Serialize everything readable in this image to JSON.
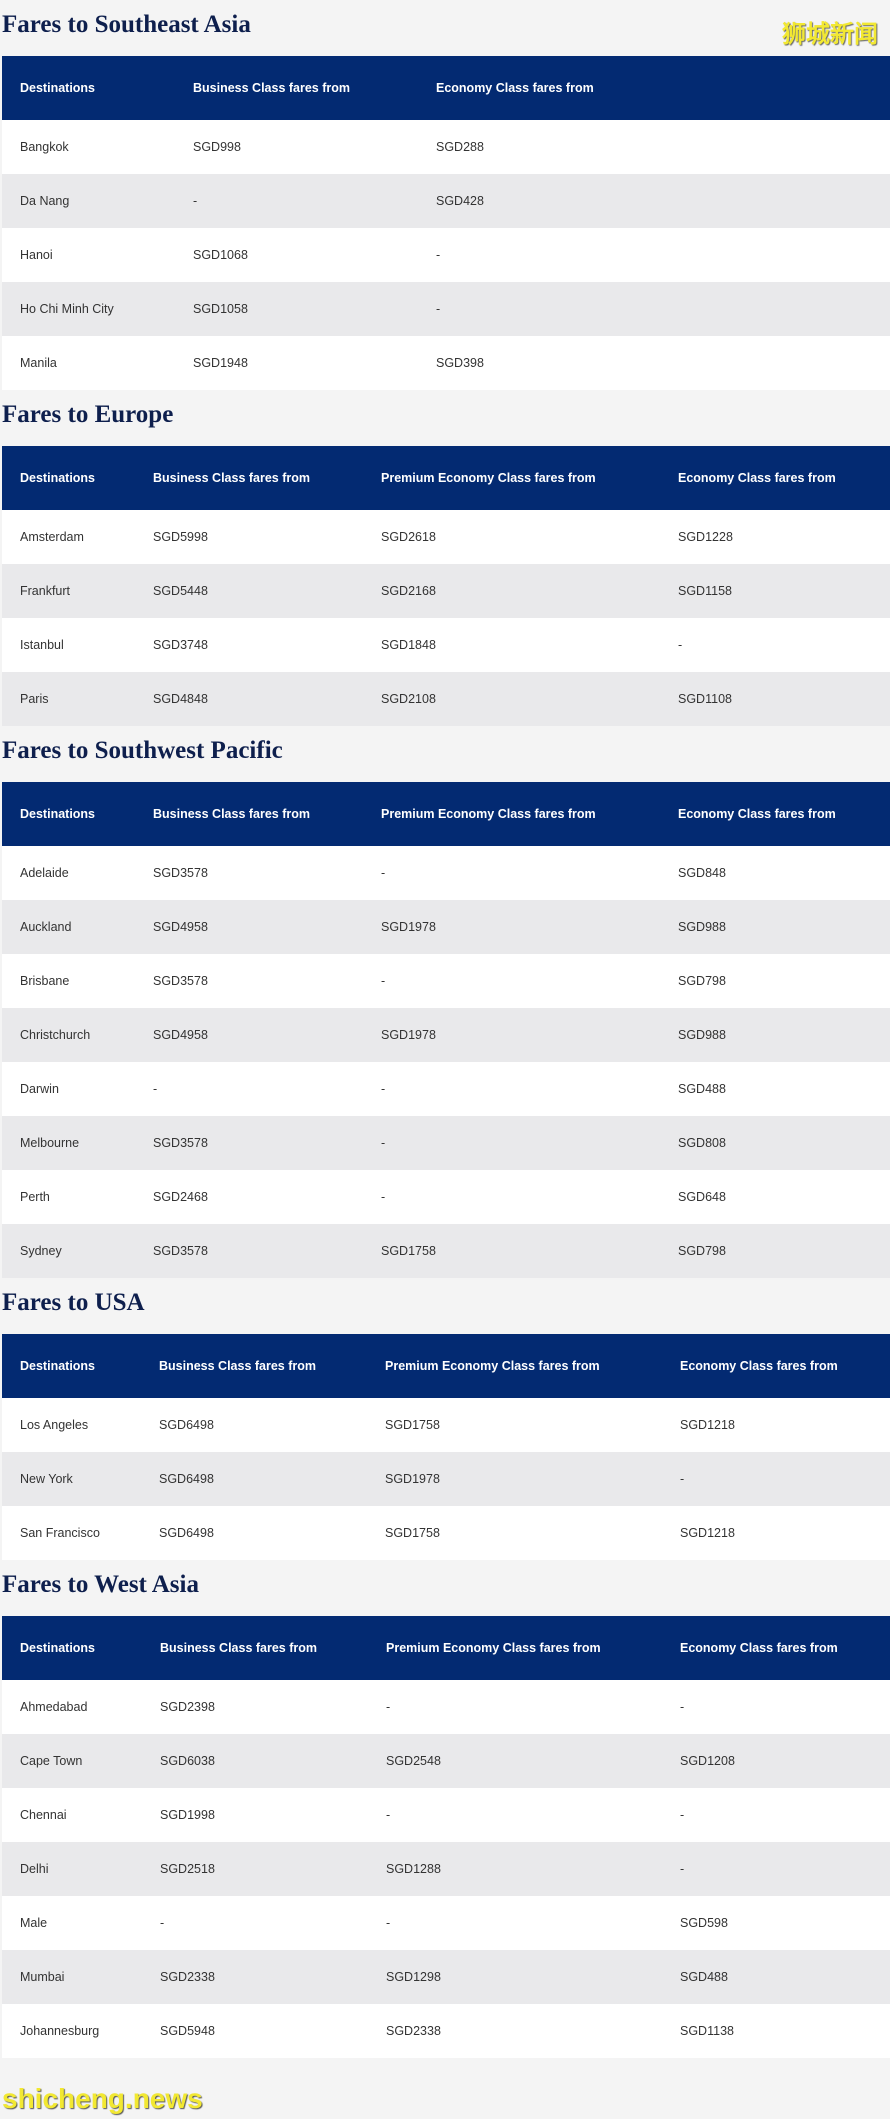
{
  "watermark_top": "狮城新闻",
  "watermark_bottom": "shicheng.news",
  "sections": [
    {
      "title": "Fares to Southeast Asia",
      "headers": [
        "Destinations",
        "Business Class fares from",
        "Economy Class fares from"
      ],
      "rows": [
        [
          "Bangkok",
          "SGD998",
          "SGD288"
        ],
        [
          "Da Nang",
          "-",
          "SGD428"
        ],
        [
          "Hanoi",
          "SGD1068",
          "-"
        ],
        [
          "Ho Chi Minh City",
          "SGD1058",
          "-"
        ],
        [
          "Manila",
          "SGD1948",
          "SGD398"
        ]
      ]
    },
    {
      "title": "Fares to Europe",
      "headers": [
        "Destinations",
        "Business Class fares from",
        "Premium Economy Class fares from",
        "Economy Class fares from"
      ],
      "rows": [
        [
          "Amsterdam",
          "SGD5998",
          "SGD2618",
          "SGD1228"
        ],
        [
          "Frankfurt",
          "SGD5448",
          "SGD2168",
          "SGD1158"
        ],
        [
          "Istanbul",
          "SGD3748",
          "SGD1848",
          "-"
        ],
        [
          "Paris",
          "SGD4848",
          "SGD2108",
          "SGD1108"
        ]
      ]
    },
    {
      "title": "Fares to Southwest Pacific",
      "headers": [
        "Destinations",
        "Business Class fares from",
        "Premium Economy Class fares from",
        "Economy Class fares from"
      ],
      "rows": [
        [
          "Adelaide",
          "SGD3578",
          "-",
          "SGD848"
        ],
        [
          "Auckland",
          "SGD4958",
          "SGD1978",
          "SGD988"
        ],
        [
          "Brisbane",
          "SGD3578",
          "-",
          "SGD798"
        ],
        [
          "Christchurch",
          "SGD4958",
          "SGD1978",
          "SGD988"
        ],
        [
          "Darwin",
          "-",
          "-",
          "SGD488"
        ],
        [
          "Melbourne",
          "SGD3578",
          "-",
          "SGD808"
        ],
        [
          "Perth",
          "SGD2468",
          "-",
          "SGD648"
        ],
        [
          "Sydney",
          "SGD3578",
          "SGD1758",
          "SGD798"
        ]
      ]
    },
    {
      "title": "Fares to USA",
      "headers": [
        "Destinations",
        "Business Class fares from",
        "Premium Economy Class fares from",
        "Economy Class fares from"
      ],
      "rows": [
        [
          "Los Angeles",
          "SGD6498",
          "SGD1758",
          "SGD1218"
        ],
        [
          "New York",
          "SGD6498",
          "SGD1978",
          "-"
        ],
        [
          "San Francisco",
          "SGD6498",
          "SGD1758",
          "SGD1218"
        ]
      ]
    },
    {
      "title": "Fares to West Asia",
      "headers": [
        "Destinations",
        "Business Class fares from",
        "Premium Economy Class fares from",
        "Economy Class fares from"
      ],
      "rows": [
        [
          "Ahmedabad",
          "SGD2398",
          "-",
          "-"
        ],
        [
          "Cape Town",
          "SGD6038",
          "SGD2548",
          "SGD1208"
        ],
        [
          "Chennai",
          "SGD1998",
          "-",
          "-"
        ],
        [
          "Delhi",
          "SGD2518",
          "SGD1288",
          "-"
        ],
        [
          "Male",
          "-",
          "-",
          "SGD598"
        ],
        [
          "Mumbai",
          "SGD2338",
          "SGD1298",
          "SGD488"
        ],
        [
          "Johannesburg",
          "SGD5948",
          "SGD2338",
          "SGD1138"
        ]
      ]
    }
  ]
}
